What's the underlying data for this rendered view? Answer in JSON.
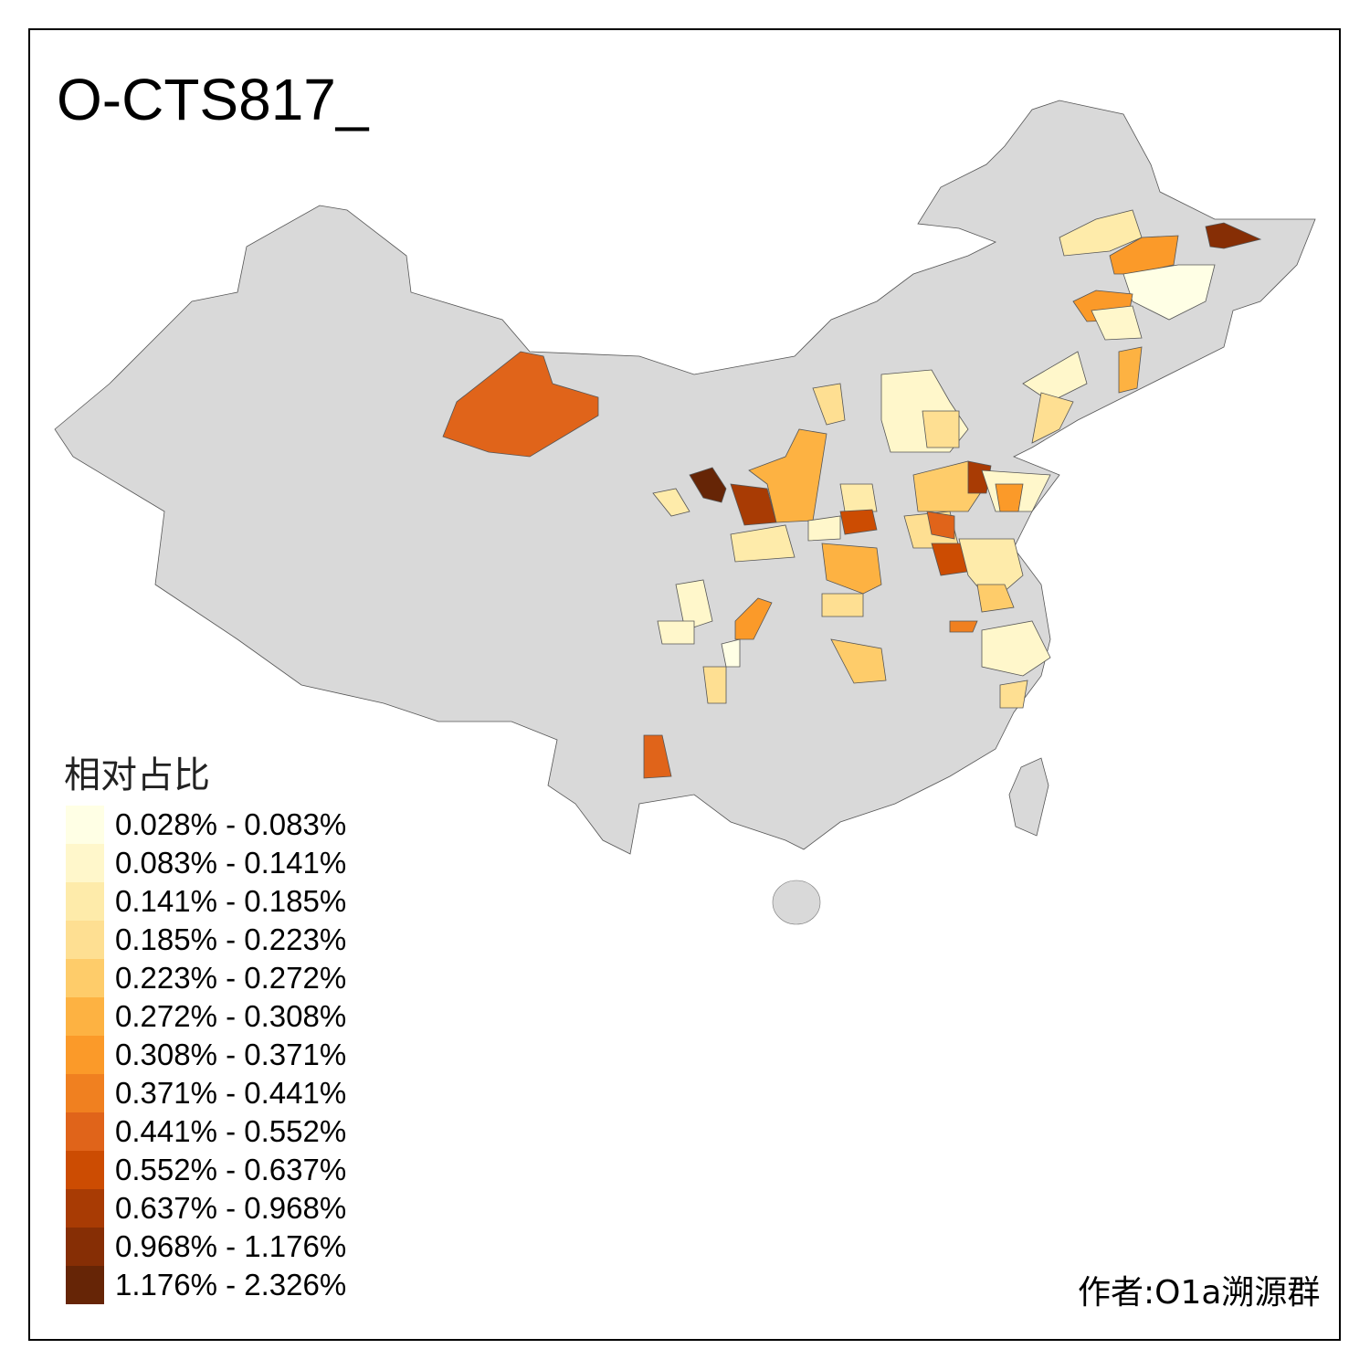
{
  "title": "O-CTS817_",
  "legend": {
    "title": "相对占比",
    "items": [
      {
        "label": "0.028% - 0.083%",
        "color": "#FFFFE5"
      },
      {
        "label": "0.083% - 0.141%",
        "color": "#FFF7CB"
      },
      {
        "label": "0.141% - 0.185%",
        "color": "#FEEBAA"
      },
      {
        "label": "0.185% - 0.223%",
        "color": "#FEDF92"
      },
      {
        "label": "0.223% - 0.272%",
        "color": "#FECC6A"
      },
      {
        "label": "0.272% - 0.308%",
        "color": "#FDB242"
      },
      {
        "label": "0.308% - 0.371%",
        "color": "#FB9A29"
      },
      {
        "label": "0.371% - 0.441%",
        "color": "#F08020"
      },
      {
        "label": "0.441% - 0.552%",
        "color": "#E0641A"
      },
      {
        "label": "0.552% - 0.637%",
        "color": "#CC4C02"
      },
      {
        "label": "0.637% - 0.968%",
        "color": "#A83B04"
      },
      {
        "label": "0.968% - 1.176%",
        "color": "#862E05"
      },
      {
        "label": "1.176% - 2.326%",
        "color": "#662506"
      }
    ]
  },
  "base_color": "#D9D9D9",
  "author": "作者:O1a溯源群"
}
